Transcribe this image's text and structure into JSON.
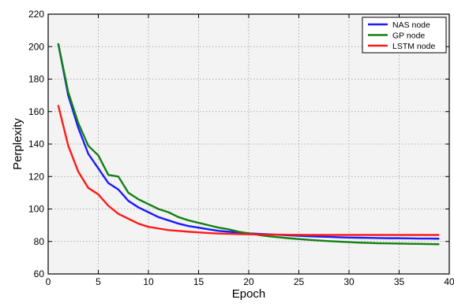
{
  "chart_data": {
    "type": "line",
    "xlabel": "Epoch",
    "ylabel": "Perplexity",
    "xlim": [
      0,
      40
    ],
    "ylim": [
      60,
      220
    ],
    "xticks": [
      0,
      5,
      10,
      15,
      20,
      25,
      30,
      35,
      40
    ],
    "yticks": [
      60,
      80,
      100,
      120,
      140,
      160,
      180,
      200,
      220
    ],
    "grid": true,
    "legend_position": "top-right",
    "x": [
      1,
      2,
      3,
      4,
      5,
      6,
      7,
      8,
      9,
      10,
      11,
      12,
      13,
      14,
      15,
      16,
      17,
      18,
      19,
      20,
      21,
      22,
      23,
      24,
      25,
      26,
      27,
      28,
      29,
      30,
      31,
      32,
      33,
      34,
      35,
      36,
      37,
      38,
      39
    ],
    "series": [
      {
        "name": "NAS node",
        "color": "#1a1aff",
        "values": [
          202,
          170,
          150,
          134,
          125,
          116,
          112,
          105,
          101,
          98,
          95,
          93,
          91,
          89.5,
          88.5,
          87.5,
          86.5,
          86,
          85.5,
          85,
          84.7,
          84.4,
          84.1,
          83.8,
          83.5,
          83.2,
          83,
          82.8,
          82.6,
          82.4,
          82.3,
          82.2,
          82.1,
          82,
          82,
          81.9,
          81.8,
          81.8,
          81.7
        ]
      },
      {
        "name": "GP node",
        "color": "#138013",
        "values": [
          202,
          172,
          153,
          139,
          133,
          121,
          120,
          110,
          106,
          103,
          100,
          98,
          95,
          93,
          91.5,
          90,
          88.5,
          87.5,
          86,
          85,
          84,
          83.2,
          82.6,
          82,
          81.5,
          81,
          80.6,
          80.2,
          79.9,
          79.6,
          79.3,
          79.1,
          78.9,
          78.8,
          78.7,
          78.6,
          78.5,
          78.4,
          78.3
        ]
      },
      {
        "name": "LSTM node",
        "color": "#ff1a1a",
        "values": [
          164,
          139,
          123,
          113,
          109,
          102,
          97,
          94,
          91,
          89,
          88,
          87,
          86.5,
          86,
          85.6,
          85.2,
          84.9,
          84.7,
          84.5,
          84.4,
          84.3,
          84.2,
          84.2,
          84.1,
          84.1,
          84,
          84,
          84,
          84,
          84,
          84,
          84,
          84,
          84,
          84,
          84,
          84,
          84,
          84
        ]
      }
    ]
  },
  "colors": {
    "plot_background": "#f3f3f3",
    "grid": "#9a9a9a"
  }
}
